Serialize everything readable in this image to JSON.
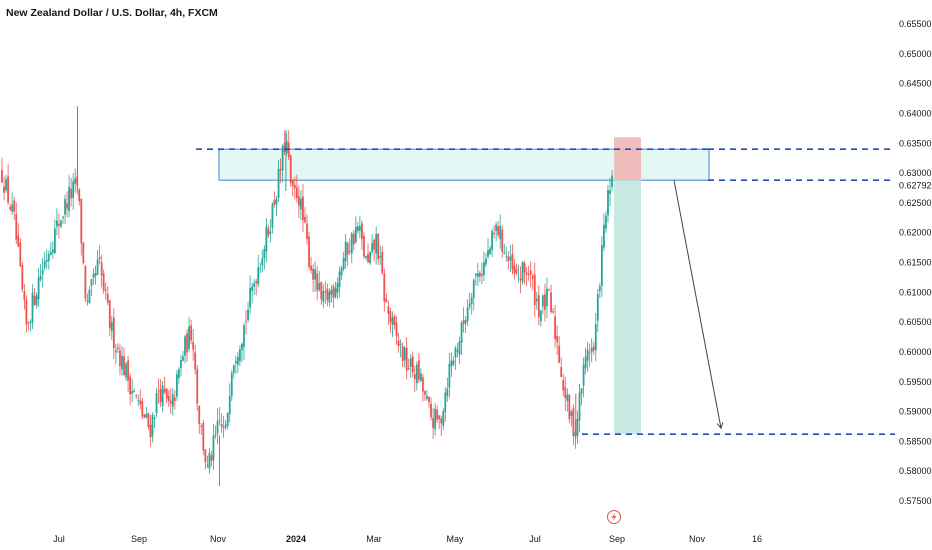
{
  "header": {
    "title": "New Zealand Dollar / U.S. Dollar, 4h, FXCM"
  },
  "icons": {
    "event_icon": "lightning-bolt-icon"
  },
  "colors": {
    "up": "#26a69a",
    "down": "#ef5350",
    "zone_fill": "#e3f7f5",
    "zone_border": "#5b9ad6",
    "dashed_line": "#1e4fb4",
    "target_fill": "#c8e9e2",
    "stop_fill": "#f0b7b6",
    "event_icon": "#e05555"
  },
  "chart_data": {
    "type": "candlestick",
    "title": "New Zealand Dollar / U.S. Dollar, 4h, FXCM",
    "y_axis": {
      "range": [
        0.5725,
        0.6575
      ],
      "ticks": [
        "0.65500",
        "0.65000",
        "0.64500",
        "0.64000",
        "0.63500",
        "0.63000",
        "0.62500",
        "0.62000",
        "0.61500",
        "0.61000",
        "0.60500",
        "0.60000",
        "0.59500",
        "0.59000",
        "0.58500",
        "0.58000",
        "0.57500"
      ],
      "current_price": "0.62792"
    },
    "x_axis": {
      "ticks": [
        {
          "label": "Jul",
          "bold": false
        },
        {
          "label": "Sep",
          "bold": false
        },
        {
          "label": "Nov",
          "bold": false
        },
        {
          "label": "2024",
          "bold": true
        },
        {
          "label": "Mar",
          "bold": false
        },
        {
          "label": "May",
          "bold": false
        },
        {
          "label": "Jul",
          "bold": false
        },
        {
          "label": "Sep",
          "bold": false
        },
        {
          "label": "Nov",
          "bold": false
        },
        {
          "label": "16",
          "bold": false
        }
      ]
    },
    "price_path": [
      {
        "t": 0,
        "p": 0.63
      },
      {
        "t": 2,
        "p": 0.622
      },
      {
        "t": 4,
        "p": 0.604
      },
      {
        "t": 6,
        "p": 0.612
      },
      {
        "t": 8,
        "p": 0.618
      },
      {
        "t": 11,
        "p": 0.626
      },
      {
        "t": 12.5,
        "p": 0.628
      },
      {
        "t": 14,
        "p": 0.607
      },
      {
        "t": 16,
        "p": 0.615
      },
      {
        "t": 18,
        "p": 0.604
      },
      {
        "t": 20,
        "p": 0.598
      },
      {
        "t": 23,
        "p": 0.59
      },
      {
        "t": 24.5,
        "p": 0.587
      },
      {
        "t": 26,
        "p": 0.594
      },
      {
        "t": 28,
        "p": 0.59
      },
      {
        "t": 30,
        "p": 0.6
      },
      {
        "t": 31.5,
        "p": 0.604
      },
      {
        "t": 32.5,
        "p": 0.59
      },
      {
        "t": 34,
        "p": 0.58
      },
      {
        "t": 36,
        "p": 0.588
      },
      {
        "t": 37,
        "p": 0.586
      },
      {
        "t": 38,
        "p": 0.598
      },
      {
        "t": 40,
        "p": 0.604
      },
      {
        "t": 42,
        "p": 0.613
      },
      {
        "t": 44,
        "p": 0.62
      },
      {
        "t": 46,
        "p": 0.63
      },
      {
        "t": 47,
        "p": 0.636
      },
      {
        "t": 48,
        "p": 0.626
      },
      {
        "t": 49,
        "p": 0.627
      },
      {
        "t": 51,
        "p": 0.615
      },
      {
        "t": 53,
        "p": 0.608
      },
      {
        "t": 55,
        "p": 0.611
      },
      {
        "t": 57,
        "p": 0.617
      },
      {
        "t": 59,
        "p": 0.621
      },
      {
        "t": 60.5,
        "p": 0.614
      },
      {
        "t": 62,
        "p": 0.619
      },
      {
        "t": 63.5,
        "p": 0.608
      },
      {
        "t": 65,
        "p": 0.603
      },
      {
        "t": 67,
        "p": 0.598
      },
      {
        "t": 69,
        "p": 0.596
      },
      {
        "t": 71,
        "p": 0.589
      },
      {
        "t": 72.5,
        "p": 0.588
      },
      {
        "t": 74,
        "p": 0.597
      },
      {
        "t": 76,
        "p": 0.603
      },
      {
        "t": 78,
        "p": 0.612
      },
      {
        "t": 80,
        "p": 0.615
      },
      {
        "t": 82,
        "p": 0.621
      },
      {
        "t": 83.5,
        "p": 0.616
      },
      {
        "t": 85,
        "p": 0.612
      },
      {
        "t": 87,
        "p": 0.614
      },
      {
        "t": 89,
        "p": 0.607
      },
      {
        "t": 90.5,
        "p": 0.609
      },
      {
        "t": 92,
        "p": 0.601
      },
      {
        "t": 93,
        "p": 0.594
      },
      {
        "t": 94,
        "p": 0.589
      },
      {
        "t": 95,
        "p": 0.587
      },
      {
        "t": 96,
        "p": 0.595
      },
      {
        "t": 97,
        "p": 0.601
      },
      {
        "t": 98,
        "p": 0.6
      },
      {
        "t": 99,
        "p": 0.613
      },
      {
        "t": 100,
        "p": 0.624
      },
      {
        "t": 101,
        "p": 0.6279
      }
    ],
    "annotations": {
      "resistance_zone": {
        "top": 0.634,
        "bottom": 0.6288
      },
      "dashed_levels": [
        0.634,
        0.6288,
        0.5862
      ],
      "target_level": 0.5862,
      "position": {
        "entry": 0.6288,
        "stop": 0.636,
        "target": 0.5862
      },
      "arrow": {
        "from": 0.6288,
        "to": 0.5872
      }
    }
  }
}
